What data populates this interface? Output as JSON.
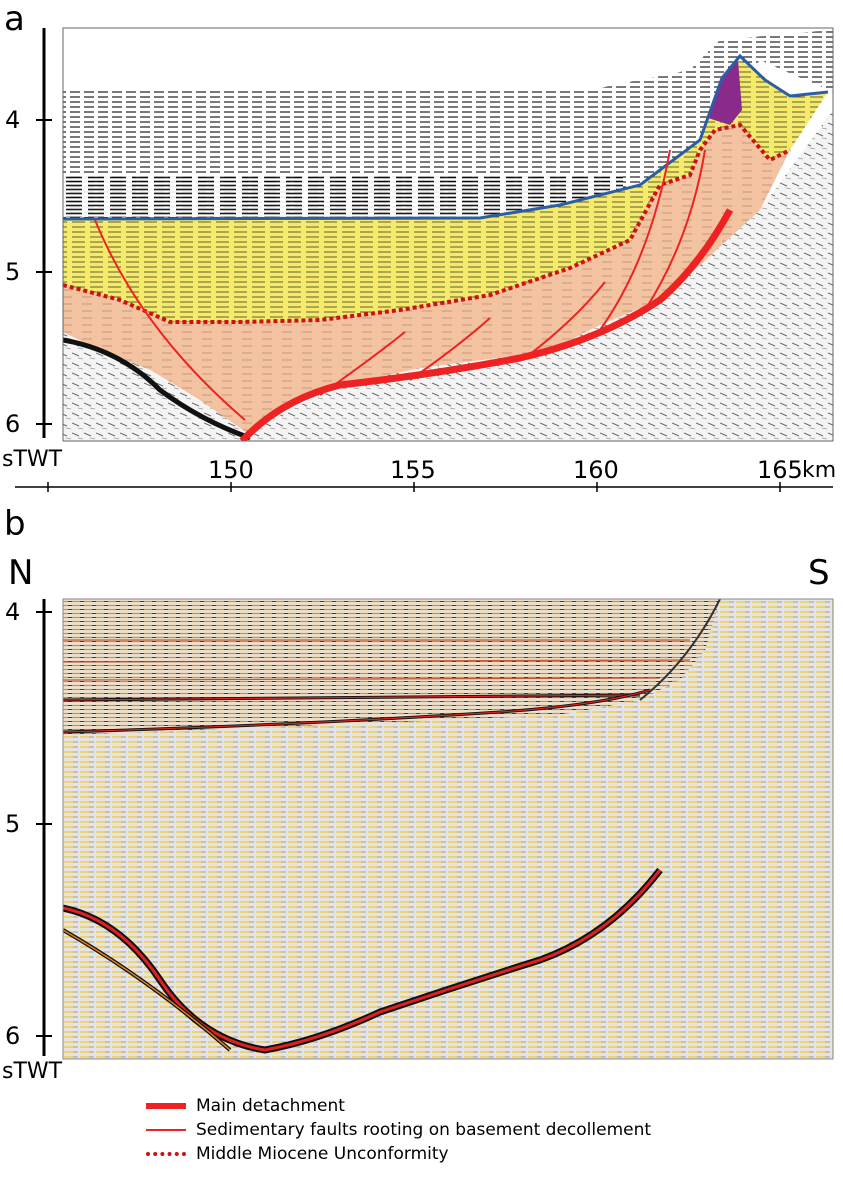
{
  "panel_a": {
    "letter": "a",
    "y_axis_label": "sTWT",
    "y_ticks": [
      "4",
      "5",
      "6"
    ],
    "x_ticks": [
      "150",
      "155",
      "160",
      "165"
    ],
    "x_unit": "km"
  },
  "panel_b": {
    "letter": "b",
    "direction_left": "N",
    "direction_right": "S",
    "y_axis_label": "sTWT",
    "y_ticks": [
      "4",
      "5",
      "6"
    ]
  },
  "legend": {
    "main_detachment": "Main detachment",
    "sedimentary_faults": "Sedimentary faults rooting on basement decollement",
    "unconformity": "Middle Miocene Unconformity"
  },
  "colors": {
    "fault_red": "#ee2222",
    "unconformity_red": "#cc1111",
    "horizon_blue": "#2a5fa8",
    "yellow_unit": "#f6ea6a",
    "salmon_unit": "#f3c2a0",
    "purple_unit": "#8a2a8a"
  }
}
